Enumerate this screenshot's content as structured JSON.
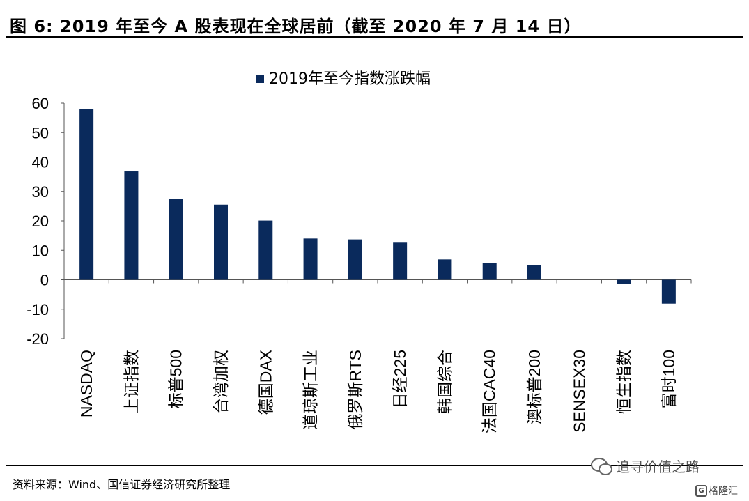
{
  "title": "图  6:  2019 年至今 A 股表现在全球居前（截至 2020 年 7 月 14 日）",
  "source": "资料来源：Wind、国信证券经济研究所整理",
  "watermark": "追寻价值之路",
  "brand": "格隆汇",
  "brand_icon": "G",
  "chart_data": {
    "type": "bar",
    "series": [
      {
        "name": "2019年至今指数涨跌幅",
        "color": "#0a2a5c",
        "values": [
          58.0,
          36.8,
          27.4,
          25.5,
          20.1,
          14.0,
          13.7,
          12.6,
          6.9,
          5.6,
          5.0,
          0.0,
          -1.3,
          -8.1
        ]
      }
    ],
    "categories": [
      "NASDAQ",
      "上证指数",
      "标普500",
      "台湾加权",
      "德国DAX",
      "道琼斯工业",
      "俄罗斯RTS",
      "日经225",
      "韩国综合",
      "法国CAC40",
      "澳标普200",
      "SENSEX30",
      "恒生指数",
      "富时100"
    ],
    "y_ticks": [
      "60",
      "50",
      "40",
      "30",
      "20",
      "10",
      "0",
      "-10",
      "-20"
    ],
    "ylim": [
      -20,
      60
    ],
    "grid": false,
    "legend_position": "top-center"
  }
}
